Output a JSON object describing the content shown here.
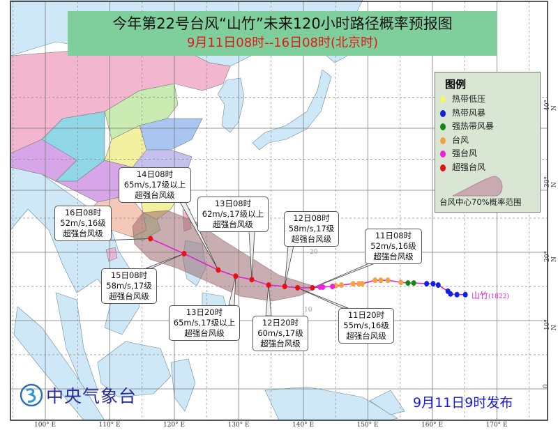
{
  "header": {
    "title": "今年第22号台风“山竹”未来120小时路径概率预报图",
    "subtitle": "9月11日08时--16日08时(北京时)"
  },
  "legend": {
    "title": "图例",
    "items": [
      {
        "label": "热带低压",
        "color": "#f5f56a"
      },
      {
        "label": "热带风暴",
        "color": "#1020e0"
      },
      {
        "label": "强热带风暴",
        "color": "#108a10"
      },
      {
        "label": "台风",
        "color": "#f7a040"
      },
      {
        "label": "强台风",
        "color": "#f020e0"
      },
      {
        "label": "超强台风",
        "color": "#e81010"
      }
    ],
    "cone_label": "台风中心70%概率范围",
    "cone_color": "#9b6b70"
  },
  "storm": {
    "name": "山竹",
    "code": "(1822)",
    "track_color": "#e020d0"
  },
  "past_track": [
    {
      "lon": 165.1,
      "lat": 13.8,
      "type": "热带风暴"
    },
    {
      "lon": 163.8,
      "lat": 13.8,
      "type": "热带风暴"
    },
    {
      "lon": 162.8,
      "lat": 13.9,
      "type": "热带风暴"
    },
    {
      "lon": 162.4,
      "lat": 14.3,
      "type": "热带风暴"
    },
    {
      "lon": 160.9,
      "lat": 15.2,
      "type": "热带风暴"
    },
    {
      "lon": 160.1,
      "lat": 15.4,
      "type": "热带风暴"
    },
    {
      "lon": 159.1,
      "lat": 15.4,
      "type": "热带风暴"
    },
    {
      "lon": 157.1,
      "lat": 15.5,
      "type": "强热带风暴"
    },
    {
      "lon": 156.2,
      "lat": 15.5,
      "type": "强热带风暴"
    },
    {
      "lon": 155.1,
      "lat": 15.6,
      "type": "台风"
    },
    {
      "lon": 153.1,
      "lat": 15.9,
      "type": "台风"
    },
    {
      "lon": 152.0,
      "lat": 15.9,
      "type": "台风"
    },
    {
      "lon": 151.1,
      "lat": 15.9,
      "type": "台风"
    },
    {
      "lon": 149.1,
      "lat": 15.4,
      "type": "台风"
    },
    {
      "lon": 148.6,
      "lat": 15.4,
      "type": "台风"
    },
    {
      "lon": 147.7,
      "lat": 15.4,
      "type": "台风"
    },
    {
      "lon": 145.9,
      "lat": 15.2,
      "type": "台风"
    },
    {
      "lon": 145.0,
      "lat": 15.1,
      "type": "台风"
    },
    {
      "lon": 144.5,
      "lat": 15.0,
      "type": "强台风"
    },
    {
      "lon": 143.0,
      "lat": 14.9,
      "type": "强台风"
    },
    {
      "lon": 142.6,
      "lat": 14.9,
      "type": "强台风"
    }
  ],
  "forecast": [
    {
      "time": "11日08时",
      "wind": "52m/s,16级",
      "level": "超强台风级",
      "lon": 141.4,
      "lat": 14.8
    },
    {
      "time": "11日20时",
      "wind": "55m/s,16级",
      "level": "超强台风级",
      "lon": 139.1,
      "lat": 14.8
    },
    {
      "time": "12日08时",
      "wind": "58m/s,17级",
      "level": "超强台风级",
      "lon": 137.1,
      "lat": 15.0
    },
    {
      "time": "12日20时",
      "wind": "60m/s,17级",
      "level": "超强台风级",
      "lon": 134.6,
      "lat": 15.2
    },
    {
      "time": "13日08时",
      "wind": "62m/s,17级以上",
      "level": "超强台风级",
      "lon": 132.0,
      "lat": 16.0
    },
    {
      "time": "13日20时",
      "wind": "65m/s,17级以上",
      "level": "超强台风级",
      "lon": 129.5,
      "lat": 16.5
    },
    {
      "time": "14日08时",
      "wind": "65m/s,17级以上",
      "level": "超强台风级",
      "lon": 126.8,
      "lat": 17.4
    },
    {
      "time": "15日08时",
      "wind": "58m/s,17级",
      "level": "超强台风级",
      "lon": 121.5,
      "lat": 19.8
    },
    {
      "time": "16日08时",
      "wind": "52m/s,16级",
      "level": "超强台风级",
      "lon": 116.3,
      "lat": 22.0
    }
  ],
  "axes": {
    "lon_labels": [
      "100° E",
      "110° E",
      "120° E",
      "130° E",
      "140° E",
      "150° E",
      "160° E",
      "170° E"
    ],
    "lat_labels": [
      "40° N",
      "30° N",
      "20° N",
      "10° N",
      "0"
    ],
    "inline_lat_labels": [
      "20",
      "10"
    ]
  },
  "footer": {
    "agency": "中央气象台",
    "issued": "9月11日9时发布"
  }
}
